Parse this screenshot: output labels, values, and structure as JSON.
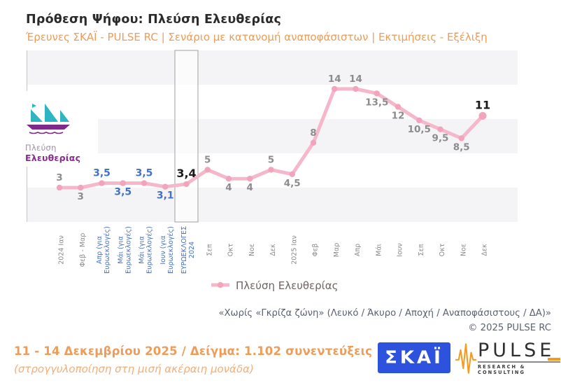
{
  "header": {
    "title": "Πρόθεση Ψήφου:  Πλεύση Ελευθερίας",
    "subtitle": "Έρευνες ΣΚΑΪ - PULSE RC  |  Σενάριο με κατανομή αναποφάσιστων  |  Εκτιμήσεις - Εξέλιξη"
  },
  "party_logo": {
    "line1": "Πλεύση",
    "line2": "Ελευθερίας"
  },
  "watermark": {
    "brand": "PULSE",
    "tagline": "RESEARCH & CONSULTING"
  },
  "chart_data": {
    "type": "line",
    "title": "Πρόθεση Ψήφου: Πλεύση Ελευθερίας",
    "ylim": [
      2.5,
      15.5
    ],
    "grid": "banded-rows",
    "legend_position": "bottom",
    "line_color": "#F5B7CA",
    "marker_color": "#F1A4BC",
    "highlight_index": 6,
    "tick_colors": {
      "gray": "#8a8a8a",
      "blue": "#4472C4"
    },
    "label_colors": {
      "gray": "#8C8C8C",
      "blue": "#4472C4",
      "black": "#1A1A1A"
    },
    "categories": [
      {
        "lines": [
          "2024 Ιαν"
        ],
        "color": "gray"
      },
      {
        "lines": [
          "Φεβ - Μαρ"
        ],
        "color": "gray"
      },
      {
        "lines": [
          "Απρ (για",
          "Ευρωεκλογές)"
        ],
        "color": "blue"
      },
      {
        "lines": [
          "Μάι (για",
          "Ευρωεκλογές)"
        ],
        "color": "blue"
      },
      {
        "lines": [
          "Μάι (για",
          "Ευρωεκλογές)"
        ],
        "color": "blue"
      },
      {
        "lines": [
          "Ιουν (για",
          "Ευρωεκλογές)"
        ],
        "color": "blue"
      },
      {
        "lines": [
          "ΕΥΡΩΕΚΛΟΓΕΣ",
          "2024"
        ],
        "color": "blue"
      },
      {
        "lines": [
          "Σεπ"
        ],
        "color": "gray"
      },
      {
        "lines": [
          "Οκτ"
        ],
        "color": "gray"
      },
      {
        "lines": [
          "Νοε"
        ],
        "color": "gray"
      },
      {
        "lines": [
          "Δεκ"
        ],
        "color": "gray"
      },
      {
        "lines": [
          "2025 Ιαν"
        ],
        "color": "gray"
      },
      {
        "lines": [
          "Φεβ"
        ],
        "color": "gray"
      },
      {
        "lines": [
          "Μαρ"
        ],
        "color": "gray"
      },
      {
        "lines": [
          "Απρ"
        ],
        "color": "gray"
      },
      {
        "lines": [
          "Μάι"
        ],
        "color": "gray"
      },
      {
        "lines": [
          "Ιουν"
        ],
        "color": "gray"
      },
      {
        "lines": [
          "Σεπ"
        ],
        "color": "gray"
      },
      {
        "lines": [
          "Οκτ"
        ],
        "color": "gray"
      },
      {
        "lines": [
          "Νοε"
        ],
        "color": "gray"
      },
      {
        "lines": [
          "Δεκ"
        ],
        "color": "gray"
      }
    ],
    "series": [
      {
        "name": "Πλεύση Ελευθερίας",
        "values": [
          3,
          3,
          3.5,
          3.5,
          3.5,
          3.1,
          3.4,
          5,
          4,
          4,
          5,
          4.5,
          8,
          14,
          14,
          13.5,
          12,
          10.5,
          9.5,
          8.5,
          11
        ],
        "labels": [
          "3",
          "3",
          "3,5",
          "3,5",
          "3,5",
          "3,1",
          "3,4",
          "5",
          "4",
          "4",
          "5",
          "4,5",
          "8",
          "14",
          "14",
          "13,5",
          "12",
          "10,5",
          "9,5",
          "8,5",
          "11"
        ],
        "label_pos": [
          "above",
          "below",
          "above",
          "below",
          "above",
          "below",
          "above",
          "above",
          "below",
          "below",
          "above",
          "below",
          "above",
          "above",
          "above",
          "below",
          "below",
          "below",
          "below",
          "below",
          "above"
        ],
        "label_style": [
          "gray",
          "gray",
          "blue",
          "blue",
          "blue",
          "blue",
          "black",
          "gray",
          "gray",
          "gray",
          "gray",
          "gray",
          "gray",
          "gray",
          "gray",
          "gray",
          "gray",
          "gray",
          "gray",
          "gray",
          "black"
        ]
      }
    ]
  },
  "legend": {
    "label": "Πλεύση Ελευθερίας",
    "marker_color": "#F5B7CA"
  },
  "footnote": {
    "line1": "«Χωρίς «Γκρίζα ζώνη»  (Λευκό / Άκυρο / Αποχή / Αναποφάσιστους / ΔΑ)»",
    "line2": "©  2025  PULSE RC"
  },
  "footer": {
    "line1": "11 - 14 Δεκεμβρίου 2025  /  Δείγμα:  1.102 συνεντεύξεις",
    "line2": "(στρογγυλοποίηση στη μισή ακέραιη μονάδα)"
  },
  "logos": {
    "skai": "ΣΚΑΪ",
    "pulse": "PULSE",
    "pulse_tagline": "RESEARCH & CONSULTING"
  }
}
